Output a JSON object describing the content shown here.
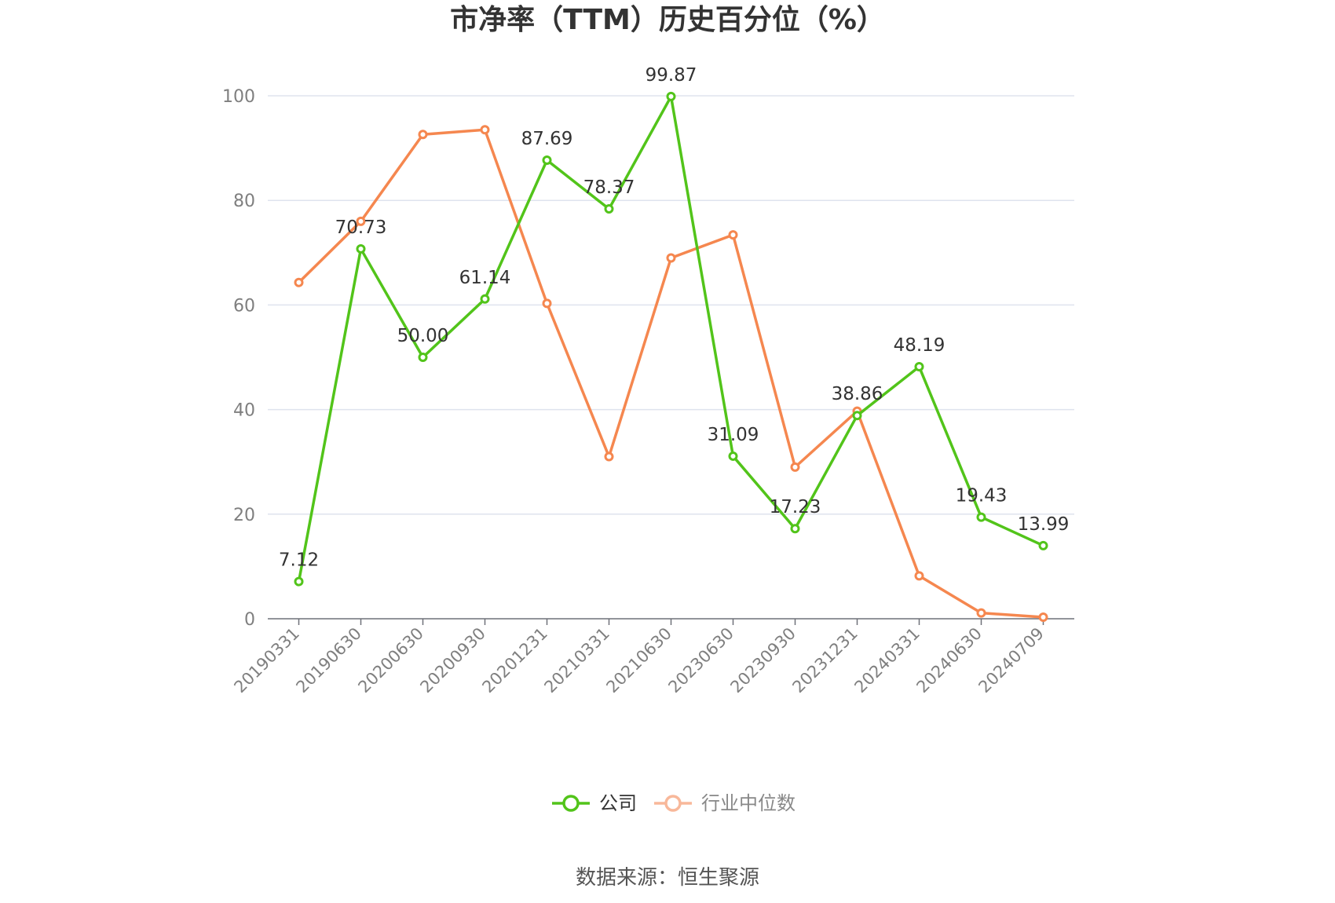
{
  "chart_data": {
    "type": "line",
    "title": "市净率（TTM）历史百分位（%）",
    "categories": [
      "20190331",
      "20190630",
      "20200630",
      "20200930",
      "20201231",
      "20210331",
      "20210630",
      "20230630",
      "20230930",
      "20231231",
      "20240331",
      "20240630",
      "20240709"
    ],
    "ylim": [
      0,
      100
    ],
    "yticks": [
      0,
      20,
      40,
      60,
      80,
      100
    ],
    "grid": true,
    "legend_position": "bottom",
    "series": [
      {
        "name": "公司",
        "color": "#52c41a",
        "values": [
          7.12,
          70.73,
          50.0,
          61.14,
          87.69,
          78.37,
          99.87,
          31.09,
          17.23,
          38.86,
          48.19,
          19.43,
          13.99
        ],
        "labels": [
          "7.12",
          "70.73",
          "50.00",
          "61.14",
          "87.69",
          "78.37",
          "99.87",
          "31.09",
          "17.23",
          "38.86",
          "48.19",
          "19.43",
          "13.99"
        ]
      },
      {
        "name": "行业中位数",
        "color": "#f5874f",
        "values": [
          64.3,
          76.0,
          92.6,
          93.5,
          60.3,
          31.0,
          69.0,
          73.4,
          29.0,
          39.7,
          8.2,
          1.1,
          0.3
        ]
      }
    ]
  },
  "source": "数据来源：恒生聚源"
}
